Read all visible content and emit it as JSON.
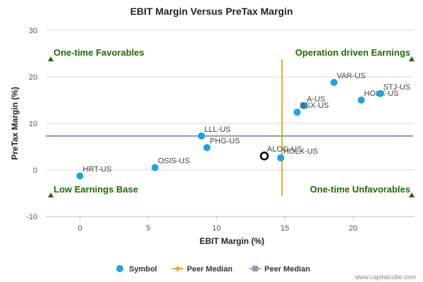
{
  "chart_data": {
    "type": "scatter",
    "title": "EBIT Margin Versus PreTax Margin",
    "xlabel": "EBIT Margin (%)",
    "ylabel": "PreTax Margin (%)",
    "xlim": [
      -2.5,
      24.5
    ],
    "ylim": [
      -10,
      30
    ],
    "xticks": [
      0,
      5,
      10,
      15,
      20
    ],
    "yticks": [
      -10,
      0,
      10,
      20,
      30
    ],
    "points": [
      {
        "label": "HRT-US",
        "x": 0.0,
        "y": -1.3
      },
      {
        "label": "OSIS-US",
        "x": 5.5,
        "y": 0.5
      },
      {
        "label": "LLL-US",
        "x": 8.9,
        "y": 7.3
      },
      {
        "label": "PHG-US",
        "x": 9.3,
        "y": 4.8
      },
      {
        "label": "ALOG-US",
        "x": 13.5,
        "y": 3.0,
        "highlight": true
      },
      {
        "label": "HOLX-US",
        "x": 14.7,
        "y": 2.6
      },
      {
        "label": "A-US",
        "x": 16.4,
        "y": 13.8
      },
      {
        "label": "BSX-US",
        "x": 15.9,
        "y": 12.4
      },
      {
        "label": "VAR-US",
        "x": 18.6,
        "y": 18.8
      },
      {
        "label": "HOLX-US",
        "x": 20.6,
        "y": 15.0
      },
      {
        "label": "STJ-US",
        "x": 22.0,
        "y": 16.4
      }
    ],
    "peer_median_x": 14.8,
    "peer_median_y": 7.3,
    "quadrants": {
      "top_left": "One-time Favorables",
      "top_right": "Operation driven Earnings",
      "bottom_left": "Low Earnings Base",
      "bottom_right": "One-time Unfavorables"
    },
    "legend": [
      {
        "name": "Symbol",
        "color": "#1aa3e8"
      },
      {
        "name": "Peer Median",
        "color": "#f5a623"
      },
      {
        "name": "Peer Median",
        "color": "#8a9bb0"
      }
    ],
    "credit": "www.capitalcube.com",
    "colors": {
      "point": "#1aa3e8",
      "vline": "#f5a623",
      "hline": "#8a9bb0",
      "quadrant": "#1f6b00",
      "highlight_stroke": "#000000"
    }
  }
}
